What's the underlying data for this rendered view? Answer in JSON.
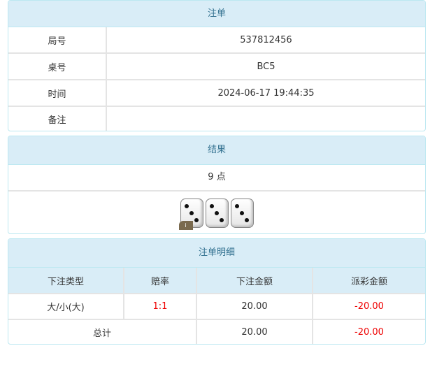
{
  "order": {
    "title": "注单",
    "rows": [
      {
        "label": "局号",
        "value": "537812456"
      },
      {
        "label": "桌号",
        "value": "BC5"
      },
      {
        "label": "时间",
        "value": "2024-06-17 19:44:35"
      },
      {
        "label": "备注",
        "value": ""
      }
    ]
  },
  "result": {
    "title": "结果",
    "points": "9 点",
    "dice": [
      3,
      3,
      3
    ],
    "info_badge": "i"
  },
  "detail": {
    "title": "注单明细",
    "headers": [
      "下注类型",
      "赔率",
      "下注金额",
      "派彩金额"
    ],
    "row": {
      "type": "大/小(大)",
      "odds": "1:1",
      "bet": "20.00",
      "payout": "-20.00"
    },
    "total": {
      "label": "总计",
      "bet": "20.00",
      "payout": "-20.00"
    }
  },
  "colors": {
    "header_bg": "#d9edf7",
    "header_text": "#31708f",
    "negative": "#ee0000"
  }
}
